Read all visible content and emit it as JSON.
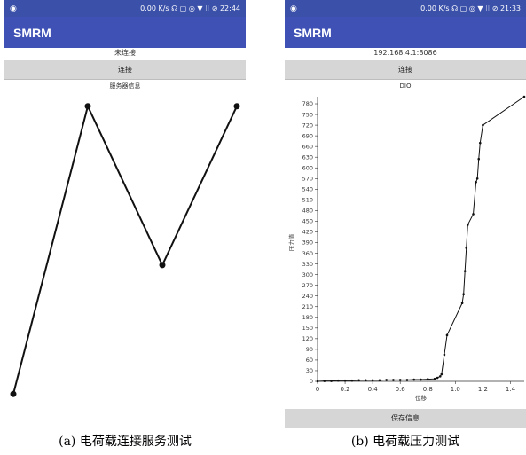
{
  "panels": [
    {
      "status_bar": {
        "left_icon": "android-notification-icon",
        "text": "0.00 K/s ☊ ▢ ◎ ▼ ⁝⁝ ⊘ 22:44"
      },
      "app_title": "SMRM",
      "connection_status": "未连接",
      "connect_button": "连接",
      "info_label": "服务器信息",
      "caption": "(a) 电荷载连接服务测试"
    },
    {
      "status_bar": {
        "left_icon": "android-notification-icon",
        "text": "0.00 K/s ☊ ▢ ◎ ▼ ⁝⁝ ⊘ 21:33"
      },
      "app_title": "SMRM",
      "connection_status": "192.168.4.1:8086",
      "connect_button": "连接",
      "info_label": "DIO",
      "save_button": "保存信息",
      "caption": "(b) 电荷载压力测试"
    }
  ],
  "chart_data": [
    {
      "type": "line",
      "title": "",
      "xlabel": "",
      "ylabel": "",
      "grid": false,
      "axes_visible": false,
      "x": [
        0,
        1,
        2,
        3
      ],
      "values": [
        0.02,
        0.98,
        0.45,
        0.98
      ],
      "colors": {
        "line": "#111111",
        "marker": "#111111"
      }
    },
    {
      "type": "line",
      "title": "DIO",
      "xlabel": "位移",
      "ylabel": "压力值",
      "xlim": [
        0,
        1.5
      ],
      "ylim": [
        0,
        800
      ],
      "xticks": [
        0,
        0.2,
        0.4,
        0.6,
        0.8,
        1.0,
        1.2,
        1.4
      ],
      "yticks": [
        0,
        30,
        60,
        90,
        120,
        150,
        180,
        210,
        240,
        270,
        300,
        330,
        360,
        390,
        420,
        450,
        480,
        510,
        540,
        570,
        600,
        630,
        660,
        690,
        720,
        750,
        780
      ],
      "grid": false,
      "colors": {
        "line": "#111111",
        "marker": "#111111"
      },
      "x": [
        0.0,
        0.05,
        0.1,
        0.15,
        0.2,
        0.25,
        0.3,
        0.35,
        0.4,
        0.45,
        0.5,
        0.55,
        0.6,
        0.65,
        0.7,
        0.75,
        0.8,
        0.85,
        0.87,
        0.89,
        0.9,
        0.92,
        0.94,
        1.05,
        1.06,
        1.07,
        1.08,
        1.09,
        1.13,
        1.15,
        1.16,
        1.17,
        1.18,
        1.2,
        1.5
      ],
      "values": [
        0,
        1,
        1,
        2,
        2,
        2,
        3,
        3,
        3,
        3,
        4,
        4,
        4,
        4,
        5,
        5,
        6,
        7,
        10,
        14,
        20,
        75,
        130,
        220,
        245,
        310,
        375,
        440,
        470,
        560,
        570,
        625,
        670,
        720,
        800
      ]
    }
  ],
  "x_tick_labels": [
    "0",
    "0.2",
    "0.4",
    "0.6",
    "0.8",
    "1.0",
    "1.2",
    "1.4"
  ],
  "y_tick_labels": [
    "0",
    "30",
    "60",
    "90",
    "120",
    "150",
    "180",
    "210",
    "240",
    "270",
    "300",
    "330",
    "360",
    "390",
    "420",
    "450",
    "480",
    "510",
    "540",
    "570",
    "600",
    "630",
    "660",
    "690",
    "720",
    "750",
    "780"
  ]
}
